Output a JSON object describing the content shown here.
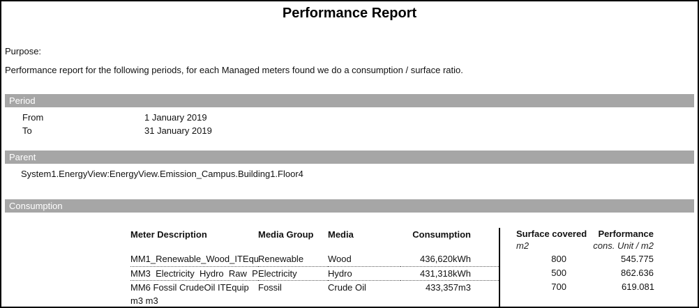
{
  "title": "Performance Report",
  "purpose": {
    "label": "Purpose:",
    "text": "Performance report for the following periods, for each Managed meters found we do a consumption / surface ratio."
  },
  "period": {
    "header": "Period",
    "rows": [
      {
        "label": "From",
        "value": "1 January 2019"
      },
      {
        "label": "To",
        "value": "31 January 2019"
      }
    ]
  },
  "parent": {
    "header": "Parent",
    "path": "System1.EnergyView:EnergyView.Emission_Campus.Building1.Floor4"
  },
  "consumption": {
    "header": "Consumption",
    "columns": {
      "meter": "Meter Description",
      "media_group": "Media Group",
      "media": "Media",
      "consumption": "Consumption",
      "surface": "Surface covered",
      "surface_unit": "m2",
      "performance": "Performance",
      "performance_unit": "cons. Unit / m2"
    },
    "rows": [
      {
        "meter": "MM1_Renewable_Wood_ITEqu",
        "media_group": "Renewable",
        "media": "Wood",
        "consumption": "436,620kWh",
        "surface": "800",
        "performance": "545.775"
      },
      {
        "meter": "MM3  Electricity  Hydro  Raw  P",
        "media_group": "Electricity",
        "media": "Hydro",
        "consumption": "431,318kWh",
        "surface": "500",
        "performance": "862.636"
      },
      {
        "meter": "MM6 Fossil CrudeOil ITEquip m3 m3",
        "media_group": "Fossil",
        "media": "Crude Oil",
        "consumption": "433,357m3",
        "surface": "700",
        "performance": "619.081"
      }
    ]
  },
  "colors": {
    "section_bar_background": "#a6a6a6",
    "section_bar_text": "#ffffff",
    "text": "#111111",
    "border": "#000000"
  }
}
